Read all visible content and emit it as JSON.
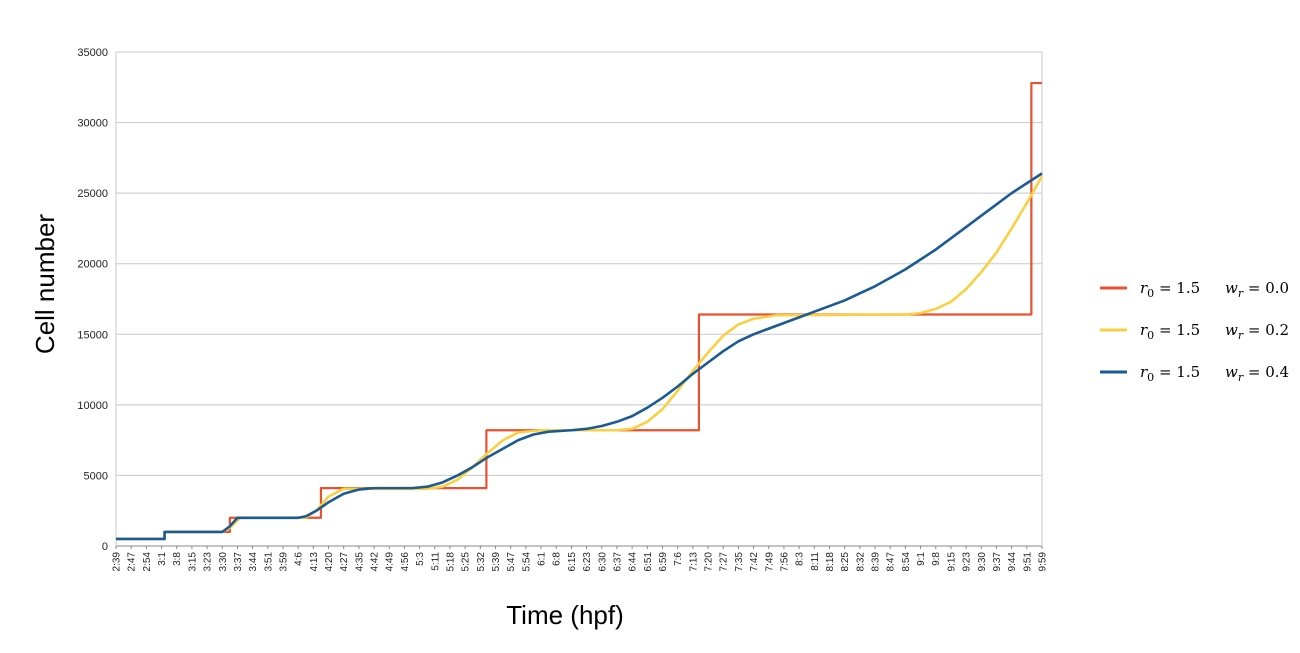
{
  "chart_data": {
    "type": "line",
    "title": "",
    "xlabel": "Time (hpf)",
    "ylabel": "Cell number",
    "ylim": [
      0,
      35000
    ],
    "y_ticks": [
      0,
      5000,
      10000,
      15000,
      20000,
      25000,
      30000,
      35000
    ],
    "grid": "horizontal",
    "legend_position": "right",
    "x_tick_labels": [
      "2:39",
      "2:47",
      "2:54",
      "3:1",
      "3:8",
      "3:15",
      "3:23",
      "3:30",
      "3:37",
      "3:44",
      "3:51",
      "3:59",
      "4:6",
      "4:13",
      "4:20",
      "4:27",
      "4:35",
      "4:42",
      "4:49",
      "4:56",
      "5:3",
      "5:11",
      "5:18",
      "5:25",
      "5:32",
      "5:39",
      "5:47",
      "5:54",
      "6:1",
      "6:8",
      "6:15",
      "6:23",
      "6:30",
      "6:37",
      "6:44",
      "6:51",
      "6:59",
      "7:6",
      "7:13",
      "7:20",
      "7:27",
      "7:35",
      "7:42",
      "7:49",
      "7:56",
      "8:3",
      "8:11",
      "8:18",
      "8:25",
      "8:32",
      "8:39",
      "8:47",
      "8:54",
      "9:1",
      "9:8",
      "9:15",
      "9:23",
      "9:30",
      "9:37",
      "9:44",
      "9:51",
      "9:59"
    ],
    "series": [
      {
        "name": "r0 = 1.5   wr = 0.0",
        "legend_label": {
          "a": "r",
          "a_sub": "0",
          "a_val": " = 1.5",
          "b": "w",
          "b_sub": "r",
          "b_val": " = 0.0"
        },
        "color": "#e8522f",
        "points": [
          [
            0,
            500
          ],
          [
            3.2,
            500
          ],
          [
            3.2,
            1000
          ],
          [
            7.5,
            1000
          ],
          [
            7.5,
            2000
          ],
          [
            13.5,
            2000
          ],
          [
            13.5,
            4100
          ],
          [
            24.4,
            4100
          ],
          [
            24.4,
            8200
          ],
          [
            38.4,
            8200
          ],
          [
            38.4,
            16400
          ],
          [
            60.3,
            16400
          ],
          [
            60.3,
            32800
          ],
          [
            61,
            32800
          ]
        ]
      },
      {
        "name": "r0 = 1.5   wr = 0.2",
        "legend_label": {
          "a": "r",
          "a_sub": "0",
          "a_val": " = 1.5",
          "b": "w",
          "b_sub": "r",
          "b_val": " = 0.2"
        },
        "color": "#fad042",
        "points": [
          [
            0,
            500
          ],
          [
            3.2,
            500
          ],
          [
            3.2,
            1000
          ],
          [
            7.0,
            1000
          ],
          [
            7.5,
            1300
          ],
          [
            8.2,
            2000
          ],
          [
            12.5,
            2000
          ],
          [
            13.2,
            2500
          ],
          [
            14.0,
            3500
          ],
          [
            15.0,
            4050
          ],
          [
            20.5,
            4050
          ],
          [
            21.5,
            4200
          ],
          [
            22.5,
            4700
          ],
          [
            23.5,
            5600
          ],
          [
            24.5,
            6600
          ],
          [
            25.5,
            7500
          ],
          [
            26.5,
            8050
          ],
          [
            28,
            8200
          ],
          [
            33,
            8200
          ],
          [
            34,
            8300
          ],
          [
            35,
            8800
          ],
          [
            36,
            9700
          ],
          [
            37,
            11000
          ],
          [
            38,
            12400
          ],
          [
            39,
            13700
          ],
          [
            40,
            14900
          ],
          [
            41,
            15700
          ],
          [
            42,
            16100
          ],
          [
            43.5,
            16350
          ],
          [
            52,
            16400
          ],
          [
            53,
            16500
          ],
          [
            54,
            16800
          ],
          [
            55,
            17300
          ],
          [
            56,
            18200
          ],
          [
            57,
            19400
          ],
          [
            58,
            20800
          ],
          [
            59,
            22500
          ],
          [
            60,
            24300
          ],
          [
            61,
            26200
          ]
        ]
      },
      {
        "name": "r0 = 1.5   wr = 0.4",
        "legend_label": {
          "a": "r",
          "a_sub": "0",
          "a_val": " = 1.5",
          "b": "w",
          "b_sub": "r",
          "b_val": " = 0.4"
        },
        "color": "#1a5b94",
        "points": [
          [
            0,
            500
          ],
          [
            3.2,
            500
          ],
          [
            3.2,
            1000
          ],
          [
            7.0,
            1000
          ],
          [
            7.5,
            1400
          ],
          [
            8.0,
            2000
          ],
          [
            12,
            2000
          ],
          [
            12.5,
            2100
          ],
          [
            13.2,
            2500
          ],
          [
            14,
            3100
          ],
          [
            15,
            3700
          ],
          [
            16,
            4000
          ],
          [
            17,
            4100
          ],
          [
            19.5,
            4100
          ],
          [
            20.5,
            4200
          ],
          [
            21.5,
            4500
          ],
          [
            22.5,
            5000
          ],
          [
            23.5,
            5600
          ],
          [
            24.5,
            6300
          ],
          [
            25.5,
            6900
          ],
          [
            26.5,
            7500
          ],
          [
            27.5,
            7900
          ],
          [
            28.5,
            8100
          ],
          [
            30,
            8200
          ],
          [
            31,
            8300
          ],
          [
            32,
            8500
          ],
          [
            33,
            8800
          ],
          [
            34,
            9200
          ],
          [
            35,
            9800
          ],
          [
            36,
            10500
          ],
          [
            37,
            11300
          ],
          [
            38,
            12200
          ],
          [
            39,
            13000
          ],
          [
            40,
            13800
          ],
          [
            41,
            14500
          ],
          [
            42,
            15000
          ],
          [
            43,
            15400
          ],
          [
            44,
            15800
          ],
          [
            45,
            16200
          ],
          [
            46,
            16600
          ],
          [
            47,
            17000
          ],
          [
            48,
            17400
          ],
          [
            49,
            17900
          ],
          [
            50,
            18400
          ],
          [
            51,
            19000
          ],
          [
            52,
            19600
          ],
          [
            53,
            20300
          ],
          [
            54,
            21000
          ],
          [
            55,
            21800
          ],
          [
            56,
            22600
          ],
          [
            57,
            23400
          ],
          [
            58,
            24200
          ],
          [
            59,
            25000
          ],
          [
            60,
            25700
          ],
          [
            61,
            26400
          ]
        ]
      }
    ]
  }
}
